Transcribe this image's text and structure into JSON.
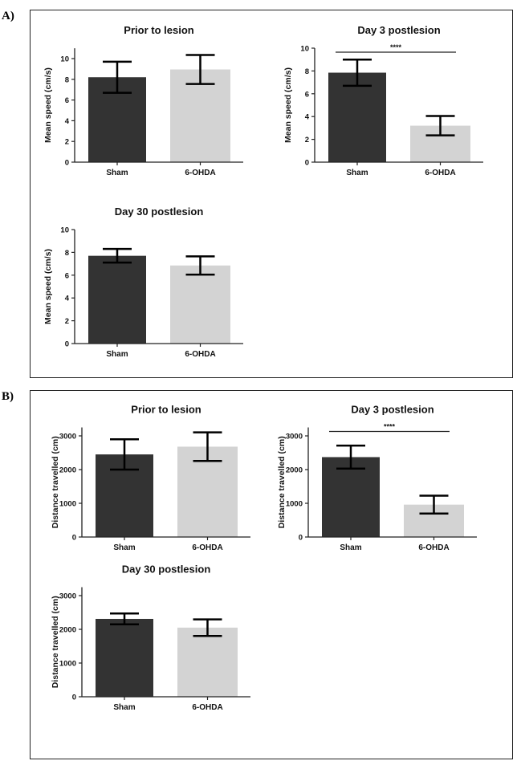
{
  "panels": [
    {
      "label": "A)"
    },
    {
      "label": "B)"
    }
  ],
  "colors": {
    "sham": "#333333",
    "ohda": "#d3d3d3",
    "error_bar": "#000000"
  },
  "chart_data": [
    {
      "type": "bar",
      "panel": "A)",
      "title": "Prior to lesion",
      "ylabel": "Mean speed (cm/s)",
      "categories": [
        "Sham",
        "6-OHDA"
      ],
      "values": [
        8.2,
        8.95
      ],
      "errors": [
        1.5,
        1.4
      ],
      "ylim": [
        0,
        11
      ],
      "yticks": [
        0,
        2,
        4,
        6,
        8,
        10
      ],
      "grid": false,
      "significance": null
    },
    {
      "type": "bar",
      "panel": "A)",
      "title": "Day 3 postlesion",
      "ylabel": "Mean speed (cm/s)",
      "categories": [
        "Sham",
        "6-OHDA"
      ],
      "values": [
        7.85,
        3.2
      ],
      "errors": [
        1.15,
        0.85
      ],
      "ylim": [
        0,
        10
      ],
      "yticks": [
        0,
        2,
        4,
        6,
        8,
        10
      ],
      "grid": false,
      "significance": "****"
    },
    {
      "type": "bar",
      "panel": "A)",
      "title": "Day 30 postlesion",
      "ylabel": "Mean speed (cm/s)",
      "categories": [
        "Sham",
        "6-OHDA"
      ],
      "values": [
        7.7,
        6.85
      ],
      "errors": [
        0.6,
        0.8
      ],
      "ylim": [
        0,
        10
      ],
      "yticks": [
        0,
        2,
        4,
        6,
        8,
        10
      ],
      "grid": false,
      "significance": null
    },
    {
      "type": "bar",
      "panel": "B)",
      "title": "Prior to lesion",
      "ylabel": "Distance travelled (cm)",
      "categories": [
        "Sham",
        "6-OHDA"
      ],
      "values": [
        2450,
        2680
      ],
      "errors": [
        450,
        425
      ],
      "ylim": [
        0,
        3250
      ],
      "yticks": [
        0,
        1000,
        2000,
        3000
      ],
      "grid": false,
      "significance": null
    },
    {
      "type": "bar",
      "panel": "B)",
      "title": "Day 3 postlesion",
      "ylabel": "Distance travelled (cm)",
      "categories": [
        "Sham",
        "6-OHDA"
      ],
      "values": [
        2370,
        960
      ],
      "errors": [
        340,
        265
      ],
      "ylim": [
        0,
        3250
      ],
      "yticks": [
        0,
        1000,
        2000,
        3000
      ],
      "grid": false,
      "significance": "****"
    },
    {
      "type": "bar",
      "panel": "B)",
      "title": "Day 30 postlesion",
      "ylabel": "Distance travelled (cm)",
      "categories": [
        "Sham",
        "6-OHDA"
      ],
      "values": [
        2310,
        2050
      ],
      "errors": [
        160,
        245
      ],
      "ylim": [
        0,
        3250
      ],
      "yticks": [
        0,
        1000,
        2000,
        3000
      ],
      "grid": false,
      "significance": null
    }
  ]
}
